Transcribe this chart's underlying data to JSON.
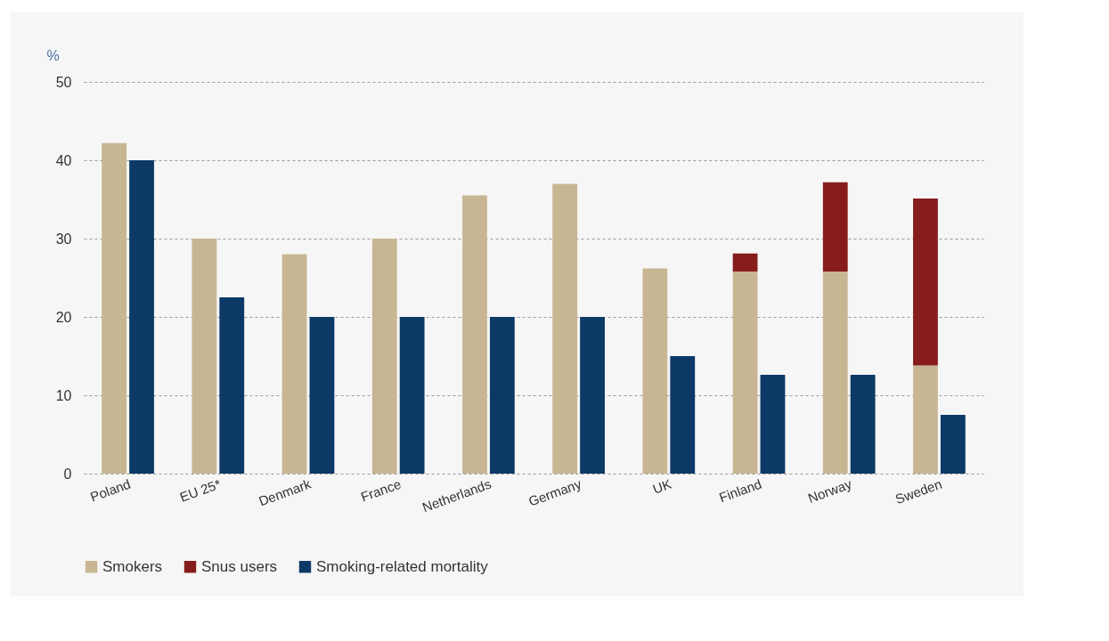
{
  "chart_data": {
    "type": "bar",
    "ylabel": "%",
    "categories": [
      "Poland",
      "EU 25*",
      "Denmark",
      "France",
      "Netherlands",
      "Germany",
      "UK",
      "Finland",
      "Norway",
      "Sweden"
    ],
    "series": [
      {
        "name": "Smokers",
        "color": "#c8b693",
        "values": [
          42.2,
          30,
          28,
          30,
          35.5,
          37,
          26.2,
          25.8,
          25.8,
          13.8
        ]
      },
      {
        "name": "Snus users",
        "color": "#861c1c",
        "base": [
          null,
          null,
          null,
          null,
          null,
          null,
          null,
          25.8,
          25.8,
          13.8
        ],
        "values": [
          null,
          null,
          null,
          null,
          null,
          null,
          null,
          2.3,
          11.4,
          21.3
        ]
      },
      {
        "name": "Smoking-related mortality",
        "color": "#0c3966",
        "values": [
          40,
          22.5,
          20,
          20,
          20,
          20,
          15,
          12.6,
          12.6,
          7.5
        ]
      }
    ],
    "ylim": [
      0,
      50
    ],
    "yticks": [
      0,
      10,
      20,
      30,
      40,
      50
    ],
    "grid": "y",
    "legend": "bottom left"
  }
}
